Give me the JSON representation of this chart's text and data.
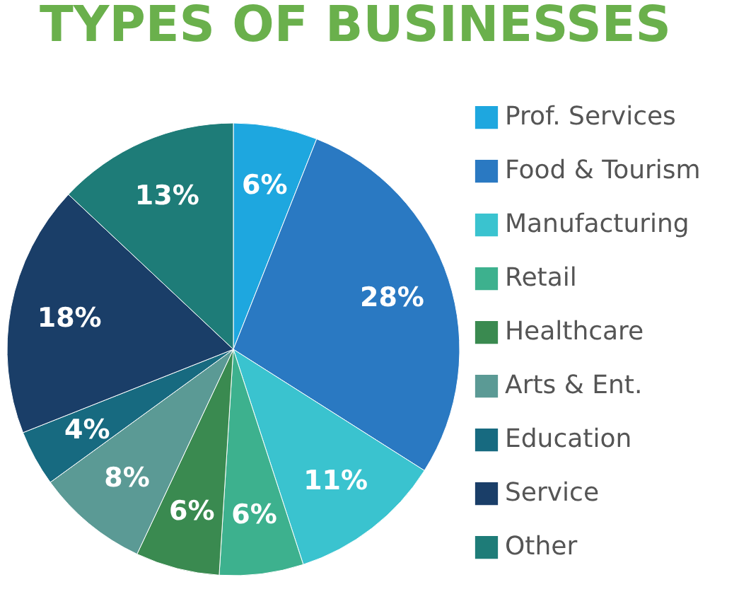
{
  "chart_data": {
    "type": "pie",
    "title": "TYPES OF BUSINESSES",
    "categories": [
      "Prof. Services",
      "Food & Tourism",
      "Manufacturing",
      "Retail",
      "Healthcare",
      "Arts & Ent.",
      "Education",
      "Service",
      "Other"
    ],
    "values": [
      6,
      28,
      11,
      6,
      6,
      8,
      4,
      18,
      13
    ],
    "value_labels": [
      "6%",
      "28%",
      "11%",
      "6%",
      "6%",
      "8%",
      "4%",
      "18%",
      "13%"
    ],
    "colors": [
      "#1ea7df",
      "#2a79c2",
      "#3ac3cf",
      "#3db18e",
      "#3a8a50",
      "#5b9a95",
      "#176a80",
      "#1a3e68",
      "#1e7c78"
    ],
    "legend": "right"
  }
}
